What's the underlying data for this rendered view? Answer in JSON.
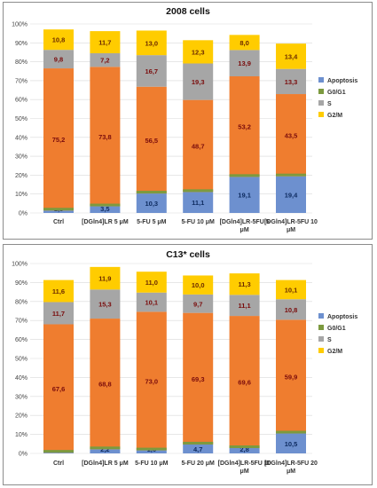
{
  "colors": {
    "Apoptosis": "#6d90cf",
    "G0/G1": "#7c9a3f",
    "S": "#a6a6a6",
    "G2/M": "#ffcc00",
    "main_fill": "#ef7d2f",
    "label_dark": "#7a0c0c",
    "label_blue": "#0d2a5f",
    "label_yellow": "#6b2a00"
  },
  "chart_data": [
    {
      "type": "bar",
      "stacked": true,
      "title": "2008 cells",
      "categories": [
        "Ctrl",
        "[DGln4]LR 5 μM",
        "5-FU 5 μM",
        "5-FU 10 μM",
        "[DGln4]LR-5FU 5 μM",
        "[DGln4]LR-5FU 10 μM"
      ],
      "series": [
        {
          "name": "Apoptosis",
          "values": [
            1.3,
            3.5,
            10.3,
            11.1,
            19.1,
            19.4
          ]
        },
        {
          "name": "G0/G1",
          "values": [
            75.2,
            73.8,
            56.5,
            48.7,
            53.2,
            43.5
          ]
        },
        {
          "name": "S",
          "values": [
            9.8,
            7.2,
            16.7,
            19.3,
            13.9,
            13.3
          ]
        },
        {
          "name": "G2/M",
          "values": [
            10.8,
            11.7,
            13.0,
            12.3,
            8.0,
            13.4
          ]
        }
      ],
      "data_labels": {
        "Apoptosis": [
          "1,3",
          "3,5",
          "10,3",
          "11,1",
          "19,1",
          "19,4"
        ],
        "G0/G1": [
          "75,2",
          "73,8",
          "56,5",
          "48,7",
          "53,2",
          "43,5"
        ],
        "S": [
          "9,8",
          "7,2",
          "16,7",
          "19,3",
          "13,9",
          "13,3"
        ],
        "G2/M": [
          "10,8",
          "11,7",
          "13,0",
          "12,3",
          "8,0",
          "13,4"
        ]
      },
      "yticks": [
        "0%",
        "10%",
        "20%",
        "30%",
        "40%",
        "50%",
        "60%",
        "70%",
        "80%",
        "90%",
        "100%"
      ],
      "ylim": [
        0,
        100
      ],
      "legend": [
        "Apoptosis",
        "G0/G1",
        "S",
        "G2/M"
      ],
      "legend_position": "right"
    },
    {
      "type": "bar",
      "stacked": true,
      "title": "C13* cells",
      "categories": [
        "Ctrl",
        "[DGln4]LR 5 μM",
        "5-FU 10 μM",
        "5-FU 20 μM",
        "[DGln4]LR-5FU 10 μM",
        "[DGln4]LR-5FU 20 μM"
      ],
      "series": [
        {
          "name": "Apoptosis",
          "values": [
            0.4,
            2.2,
            1.6,
            4.7,
            2.8,
            10.5
          ]
        },
        {
          "name": "G0/G1",
          "values": [
            67.6,
            68.8,
            73.0,
            69.3,
            69.6,
            59.9
          ]
        },
        {
          "name": "S",
          "values": [
            11.7,
            15.3,
            10.1,
            9.7,
            11.1,
            10.8
          ]
        },
        {
          "name": "G2/M",
          "values": [
            11.6,
            11.9,
            11.0,
            10.0,
            11.3,
            10.1
          ]
        }
      ],
      "data_labels": {
        "Apoptosis": [
          "0,4",
          "2,2",
          "1,6",
          "4,7",
          "2,8",
          "10,5"
        ],
        "G0/G1": [
          "67,6",
          "68,8",
          "73,0",
          "69,3",
          "69,6",
          "59,9"
        ],
        "S": [
          "11,7",
          "15,3",
          "10,1",
          "9,7",
          "11,1",
          "10,8"
        ],
        "G2/M": [
          "11,6",
          "11,9",
          "11,0",
          "10,0",
          "11,3",
          "10,1"
        ]
      },
      "yticks": [
        "0%",
        "10%",
        "20%",
        "30%",
        "40%",
        "50%",
        "60%",
        "70%",
        "80%",
        "90%",
        "100%"
      ],
      "ylim": [
        0,
        100
      ],
      "legend": [
        "Apoptosis",
        "G0/G1",
        "S",
        "G2/M"
      ],
      "legend_position": "right"
    }
  ]
}
